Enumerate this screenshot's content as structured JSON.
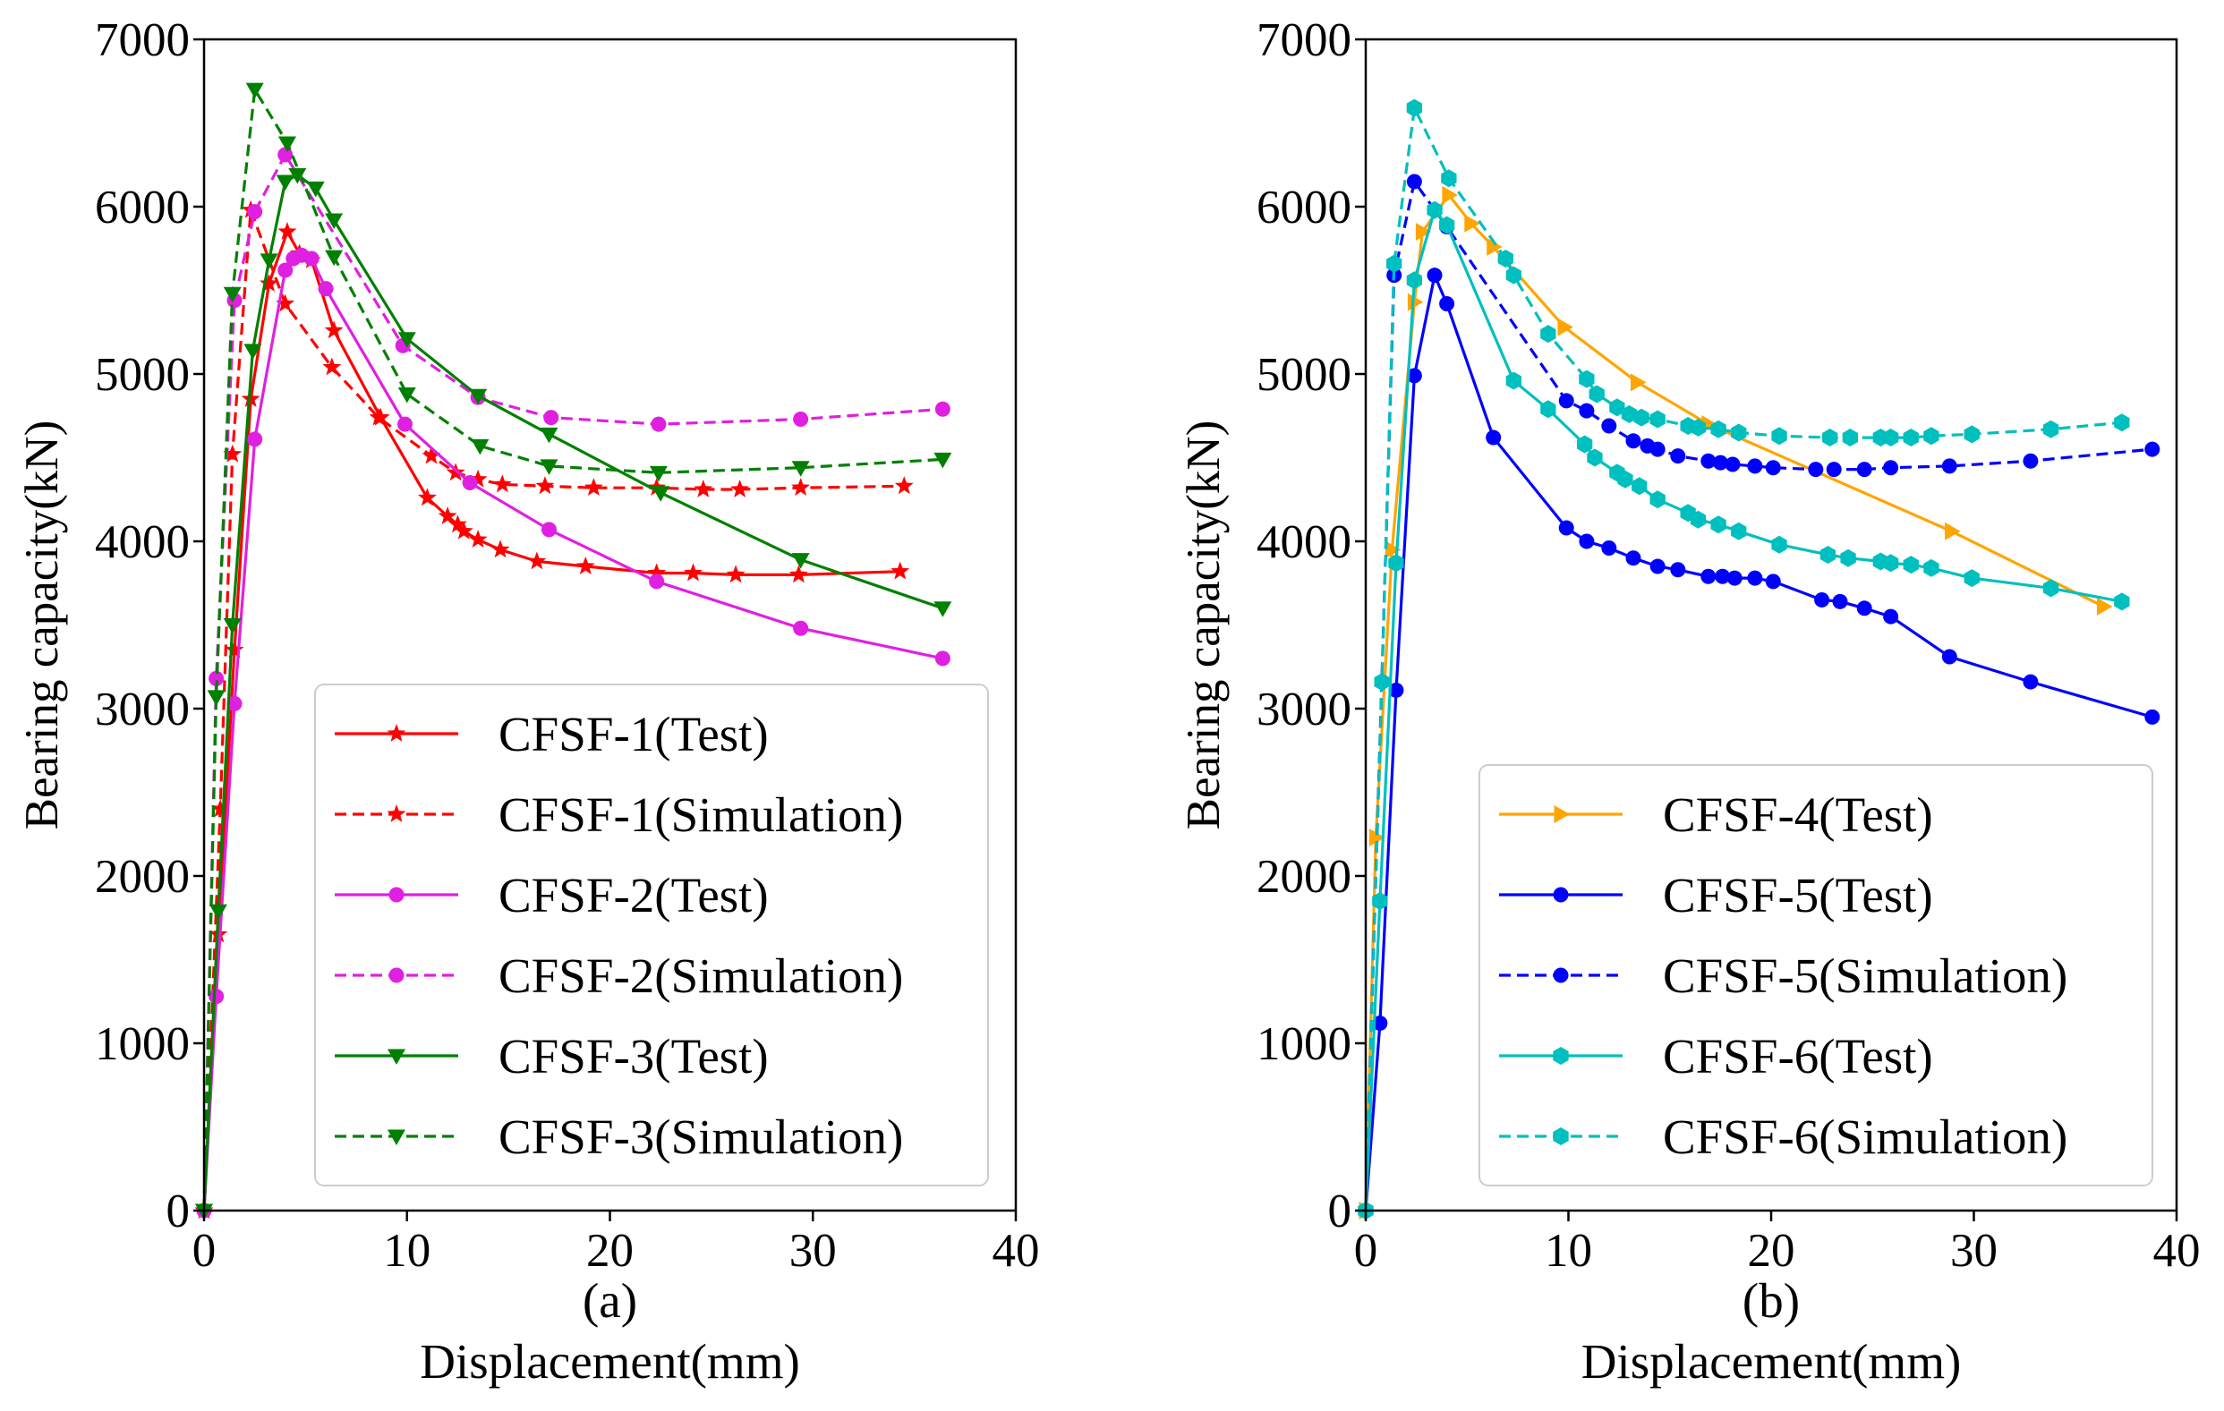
{
  "chart_data": [
    {
      "type": "line",
      "panel_label": "(a)",
      "xlabel": "Displacement(mm)",
      "ylabel": "Bearing capacity(kN)",
      "xlim": [
        0,
        40
      ],
      "ylim": [
        0,
        7000
      ],
      "x_ticks": [
        0,
        10,
        20,
        30,
        40
      ],
      "y_ticks": [
        0,
        1000,
        2000,
        3000,
        4000,
        5000,
        6000,
        7000
      ],
      "grid": false,
      "legend_position": "lower-right",
      "series": [
        {
          "name": "CFSF-1(Test)",
          "color": "#ff0000",
          "linestyle": "solid",
          "marker": "star",
          "x": [
            0,
            0.7,
            1.5,
            2.3,
            3.2,
            4.1,
            4.7,
            5.3,
            6.4,
            8.7,
            11.0,
            12.0,
            12.5,
            12.8,
            13.5,
            14.6,
            16.4,
            18.8,
            22.3,
            24.1,
            26.2,
            29.3,
            34.3
          ],
          "y": [
            0,
            1650,
            3350,
            4850,
            5540,
            5850,
            5720,
            5680,
            5260,
            4740,
            4260,
            4150,
            4100,
            4060,
            4010,
            3950,
            3880,
            3850,
            3810,
            3810,
            3800,
            3800,
            3820
          ]
        },
        {
          "name": "CFSF-1(Simulation)",
          "color": "#ff0000",
          "linestyle": "dashed",
          "marker": "star",
          "x": [
            0,
            0.8,
            1.4,
            2.3,
            4.0,
            6.3,
            8.6,
            11.2,
            12.4,
            13.5,
            14.7,
            16.8,
            19.2,
            22.3,
            24.6,
            26.4,
            29.4,
            34.5
          ],
          "y": [
            0,
            2400,
            4520,
            5980,
            5420,
            5040,
            4740,
            4510,
            4410,
            4370,
            4340,
            4330,
            4320,
            4320,
            4310,
            4310,
            4320,
            4330
          ]
        },
        {
          "name": "CFSF-2(Test)",
          "color": "#e020e0",
          "linestyle": "solid",
          "marker": "circle",
          "x": [
            0,
            0.6,
            1.5,
            2.5,
            4.0,
            4.4,
            4.8,
            5.3,
            6.0,
            9.9,
            13.1,
            17.0,
            22.3,
            29.4,
            36.4
          ],
          "y": [
            0,
            1280,
            3030,
            4610,
            5620,
            5690,
            5710,
            5690,
            5510,
            4700,
            4350,
            4070,
            3760,
            3480,
            3300
          ]
        },
        {
          "name": "CFSF-2(Simulation)",
          "color": "#e020e0",
          "linestyle": "dashed",
          "marker": "circle",
          "x": [
            0,
            0.6,
            1.5,
            2.5,
            4.0,
            9.8,
            13.5,
            17.1,
            22.4,
            29.4,
            36.4
          ],
          "y": [
            0,
            3180,
            5440,
            5970,
            6310,
            5170,
            4860,
            4740,
            4700,
            4730,
            4790
          ]
        },
        {
          "name": "CFSF-3(Test)",
          "color": "#008000",
          "linestyle": "solid",
          "marker": "triangle-down",
          "x": [
            0,
            0.7,
            1.4,
            2.4,
            3.2,
            4.0,
            4.6,
            5.5,
            6.4,
            10.0,
            13.5,
            17.0,
            22.5,
            29.4,
            36.4
          ],
          "y": [
            0,
            1790,
            3500,
            5140,
            5680,
            6150,
            6190,
            6110,
            5920,
            5210,
            4870,
            4640,
            4290,
            3890,
            3600
          ]
        },
        {
          "name": "CFSF-3(Simulation)",
          "color": "#008000",
          "linestyle": "dashed",
          "marker": "triangle-down",
          "x": [
            0,
            0.6,
            1.4,
            2.5,
            4.1,
            6.4,
            10.0,
            13.6,
            17.0,
            22.4,
            29.4,
            36.4
          ],
          "y": [
            0,
            3070,
            5480,
            6700,
            6380,
            5700,
            4880,
            4570,
            4450,
            4410,
            4440,
            4490
          ]
        }
      ]
    },
    {
      "type": "line",
      "panel_label": "(b)",
      "xlabel": "Displacement(mm)",
      "ylabel": "Bearing capacity(kN)",
      "xlim": [
        0,
        40
      ],
      "ylim": [
        0,
        7000
      ],
      "x_ticks": [
        0,
        10,
        20,
        30,
        40
      ],
      "y_ticks": [
        0,
        1000,
        2000,
        3000,
        4000,
        5000,
        6000,
        7000
      ],
      "grid": false,
      "legend_position": "lower-right",
      "series": [
        {
          "name": "CFSF-4(Test)",
          "color": "#ffa500",
          "linestyle": "solid",
          "marker": "triangle-right",
          "x": [
            0,
            0.5,
            1.3,
            2.4,
            2.8,
            4.1,
            5.2,
            6.3,
            9.8,
            13.4,
            16.9,
            28.9,
            36.4
          ],
          "y": [
            0,
            2230,
            3950,
            5430,
            5850,
            6070,
            5900,
            5760,
            5280,
            4950,
            4700,
            4060,
            3610
          ]
        },
        {
          "name": "CFSF-5(Test)",
          "color": "#0000ff",
          "linestyle": "solid",
          "marker": "circle",
          "x": [
            0,
            0.7,
            1.5,
            2.4,
            3.4,
            4.0,
            6.3,
            9.9,
            10.9,
            12.0,
            13.2,
            14.4,
            15.4,
            16.9,
            17.6,
            18.2,
            19.2,
            20.1,
            22.5,
            23.4,
            24.6,
            25.9,
            28.8,
            32.8,
            38.8
          ],
          "y": [
            0,
            1120,
            3110,
            4990,
            5590,
            5420,
            4620,
            4080,
            4000,
            3960,
            3900,
            3850,
            3830,
            3790,
            3790,
            3780,
            3780,
            3760,
            3650,
            3640,
            3600,
            3550,
            3310,
            3160,
            2950
          ]
        },
        {
          "name": "CFSF-5(Simulation)",
          "color": "#0000ff",
          "linestyle": "dashed",
          "marker": "circle",
          "x": [
            0,
            1.4,
            2.4,
            4.0,
            9.9,
            10.9,
            12.0,
            13.2,
            13.9,
            14.4,
            15.4,
            16.9,
            17.5,
            18.1,
            19.2,
            20.1,
            22.2,
            23.1,
            24.6,
            25.9,
            28.8,
            32.8,
            38.8
          ],
          "y": [
            0,
            5590,
            6150,
            5880,
            4840,
            4780,
            4690,
            4600,
            4570,
            4550,
            4510,
            4480,
            4470,
            4460,
            4450,
            4440,
            4430,
            4430,
            4430,
            4440,
            4450,
            4480,
            4550
          ]
        },
        {
          "name": "CFSF-6(Test)",
          "color": "#00bfbf",
          "linestyle": "solid",
          "marker": "hexagon",
          "x": [
            0,
            0.7,
            1.5,
            2.4,
            3.4,
            4.0,
            7.3,
            9.0,
            10.8,
            11.3,
            12.4,
            12.8,
            13.5,
            14.4,
            15.9,
            16.4,
            17.4,
            18.4,
            20.4,
            22.8,
            23.8,
            25.4,
            25.9,
            26.9,
            27.9,
            29.9,
            33.8,
            37.3
          ],
          "y": [
            0,
            1850,
            3870,
            5560,
            5980,
            5890,
            4960,
            4790,
            4580,
            4500,
            4410,
            4370,
            4330,
            4250,
            4170,
            4130,
            4100,
            4060,
            3980,
            3920,
            3900,
            3880,
            3870,
            3860,
            3840,
            3780,
            3720,
            3640
          ]
        },
        {
          "name": "CFSF-6(Simulation)",
          "color": "#00bfbf",
          "linestyle": "dashed",
          "marker": "hexagon",
          "x": [
            0,
            0.8,
            1.4,
            2.4,
            4.1,
            6.9,
            7.3,
            9.0,
            10.9,
            11.4,
            12.4,
            13.0,
            13.6,
            14.4,
            15.9,
            16.4,
            17.4,
            18.4,
            20.4,
            22.9,
            23.9,
            25.4,
            25.9,
            26.9,
            27.9,
            29.9,
            33.8,
            37.3
          ],
          "y": [
            0,
            3160,
            5660,
            6590,
            6170,
            5690,
            5590,
            5240,
            4970,
            4880,
            4800,
            4760,
            4740,
            4730,
            4690,
            4680,
            4670,
            4650,
            4630,
            4620,
            4620,
            4620,
            4620,
            4620,
            4630,
            4640,
            4670,
            4710
          ]
        }
      ]
    }
  ]
}
